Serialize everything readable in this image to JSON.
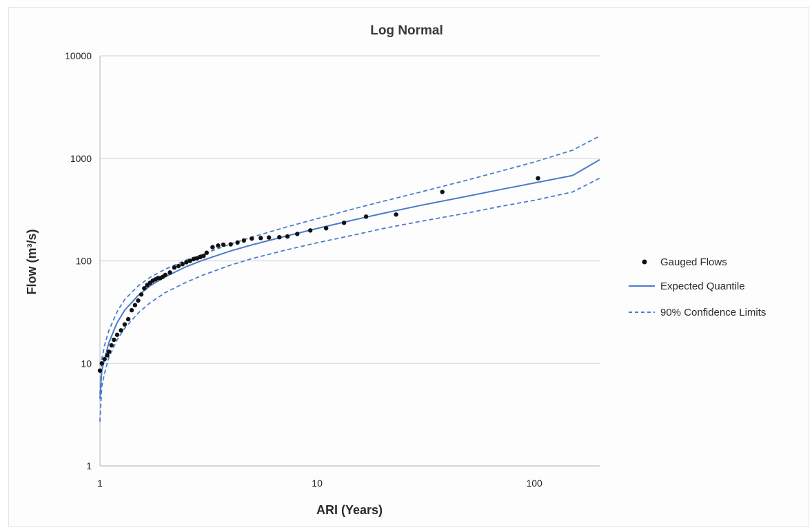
{
  "chart_data": {
    "type": "scatter",
    "title": "Log Normal",
    "xlabel": "ARI (Years)",
    "ylabel": "Flow (m³/s)",
    "x_scale": "log",
    "y_scale": "log",
    "xlim": [
      1,
      200
    ],
    "ylim": [
      1,
      10000
    ],
    "x_ticks": [
      1,
      10,
      100
    ],
    "x_tick_labels": [
      "1",
      "10",
      "100"
    ],
    "y_ticks": [
      1,
      10,
      100,
      1000,
      10000
    ],
    "y_tick_labels": [
      "1",
      "10",
      "100",
      "1000",
      "10000"
    ],
    "grid": "horizontal major",
    "legend_position": "right",
    "series": [
      {
        "name": "Gauged Flows",
        "kind": "points",
        "color": "#111111",
        "x": [
          1.0,
          1.02,
          1.05,
          1.08,
          1.1,
          1.13,
          1.16,
          1.2,
          1.25,
          1.3,
          1.35,
          1.4,
          1.45,
          1.5,
          1.55,
          1.6,
          1.65,
          1.7,
          1.75,
          1.8,
          1.85,
          1.9,
          1.95,
          2.0,
          2.1,
          2.2,
          2.3,
          2.4,
          2.5,
          2.6,
          2.7,
          2.8,
          2.9,
          3.0,
          3.1,
          3.3,
          3.5,
          3.7,
          4.0,
          4.3,
          4.6,
          5.0,
          5.5,
          6.0,
          6.7,
          7.3,
          8.1,
          9.3,
          11.0,
          13.3,
          16.8,
          23.1,
          37.7,
          104
        ],
        "y": [
          8.5,
          10,
          11,
          12,
          13,
          15,
          17,
          19,
          21,
          24,
          27,
          33,
          37,
          41,
          47,
          54,
          58,
          61,
          64,
          66,
          68,
          68,
          70,
          73,
          77,
          86,
          89,
          93,
          97,
          100,
          104,
          106,
          109,
          112,
          120,
          136,
          141,
          144,
          145,
          151,
          158,
          165,
          167,
          169,
          170,
          173,
          183,
          198,
          208,
          235,
          270,
          283,
          470,
          640
        ]
      },
      {
        "name": "Expected Quantile",
        "kind": "line",
        "color": "#4a7cc9",
        "x": [
          1.0,
          1.02,
          1.05,
          1.1,
          1.2,
          1.3,
          1.5,
          1.7,
          2,
          2.5,
          3,
          4,
          5,
          7,
          10,
          15,
          20,
          30,
          50,
          70,
          100,
          150,
          200
        ],
        "y": [
          4.5,
          8.5,
          11,
          16,
          25,
          33,
          46,
          57,
          70,
          88,
          102,
          125,
          143,
          172,
          207,
          253,
          290,
          348,
          430,
          497,
          575,
          680,
          970
        ]
      },
      {
        "name": "90% Confidence Limits",
        "kind": "dashed-line",
        "color": "#4a7cc9",
        "x": [
          1.0,
          1.02,
          1.05,
          1.1,
          1.2,
          1.3,
          1.5,
          1.7,
          2,
          2.5,
          3,
          4,
          5,
          7,
          10,
          15,
          20,
          30,
          50,
          70,
          100,
          150,
          200
        ],
        "y": [
          5,
          11,
          15,
          21,
          32,
          42,
          57,
          69,
          83,
          102,
          117,
          146,
          170,
          210,
          258,
          325,
          380,
          470,
          620,
          750,
          920,
          1200,
          1650
        ]
      },
      {
        "kind": "dashed-line",
        "color": "#4a7cc9",
        "x": [
          1.0,
          1.02,
          1.05,
          1.1,
          1.2,
          1.3,
          1.5,
          1.7,
          2,
          2.5,
          3,
          4,
          5,
          7,
          10,
          15,
          20,
          30,
          50,
          70,
          100,
          150,
          200
        ],
        "y": [
          2.7,
          6,
          8,
          11.5,
          17,
          22,
          31,
          39,
          49,
          62,
          73,
          91,
          105,
          126,
          150,
          180,
          206,
          243,
          295,
          340,
          390,
          470,
          640
        ]
      }
    ]
  }
}
